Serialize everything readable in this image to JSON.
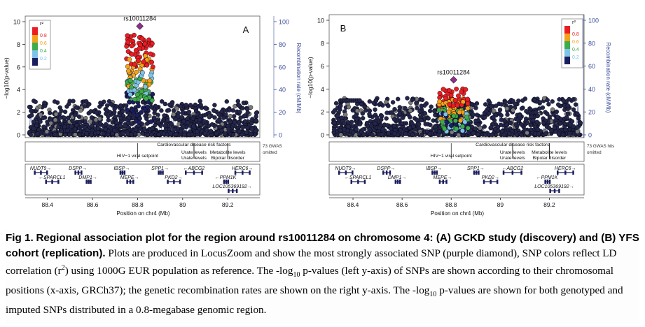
{
  "colors": {
    "r2_bins": [
      "#ea1d24",
      "#f6a11b",
      "#3dac4a",
      "#7fc4e8",
      "#1b1e5e"
    ],
    "index_snp": "#8a2f8a",
    "recomb_line": "#7a84b8",
    "recomb_axis": "#3c4d9a",
    "background_snp": "#23254a"
  },
  "chart_data": [
    {
      "panel_label": "A",
      "type": "scatter",
      "index_snp": {
        "name": "rs10011284",
        "x": 88.81,
        "y": 9.6
      },
      "x_ticks": [
        "88.4",
        "88.6",
        "88.8",
        "89",
        "89.2"
      ],
      "xlim": [
        88.32,
        89.33
      ],
      "xlabel": "Position on chr4 (Mb)",
      "ylabel_left": "−log10(p-value)",
      "ylim_left": [
        0,
        10
      ],
      "yticks_left": [
        "0",
        "2",
        "4",
        "6",
        "8",
        "10"
      ],
      "ylabel_right": "Recombination rate (cM/Mb)",
      "ylim_right": [
        0,
        100
      ],
      "yticks_right": [
        "0",
        "20",
        "40",
        "60",
        "80",
        "100"
      ],
      "legend": {
        "title": "r²",
        "labels": [
          "0.8",
          "0.6",
          "0.4",
          "0.2"
        ],
        "placement": "top-left"
      },
      "gwas_traits": [
        {
          "label": "HIV−1 viral setpoint",
          "x": 88.8
        },
        {
          "label": "Cardiovascular disease risk factors",
          "x": 89.05
        },
        {
          "label": "Urate levels",
          "x": 89.05
        },
        {
          "label": "Urate levels",
          "x": 89.05
        },
        {
          "label": "Metabolite levels",
          "x": 89.2
        },
        {
          "label": "Bipolar disorder",
          "x": 89.2
        }
      ],
      "gwas_note": [
        "73 GWAS",
        "omitted"
      ],
      "genes": [
        {
          "name": "NUDT9",
          "strand": "+",
          "start": 88.34,
          "end": 88.4,
          "row": 0
        },
        {
          "name": "SPARCL1",
          "strand": "-",
          "start": 88.39,
          "end": 88.45,
          "row": 1
        },
        {
          "name": "DSPP",
          "strand": "+",
          "start": 88.52,
          "end": 88.55,
          "row": 0
        },
        {
          "name": "DMP1",
          "strand": "+",
          "start": 88.57,
          "end": 88.59,
          "row": 1
        },
        {
          "name": "IBSP",
          "strand": "+",
          "start": 88.72,
          "end": 88.74,
          "row": 0
        },
        {
          "name": "MEPE",
          "strand": "+",
          "start": 88.75,
          "end": 88.78,
          "row": 1
        },
        {
          "name": "SPP1",
          "strand": "+",
          "start": 88.89,
          "end": 88.91,
          "row": 0
        },
        {
          "name": "PKD2",
          "strand": "+",
          "start": 88.93,
          "end": 88.99,
          "row": 1
        },
        {
          "name": "ABCG2",
          "strand": "-",
          "start": 89.01,
          "end": 89.09,
          "row": 0
        },
        {
          "name": "PPM1K",
          "strand": "-",
          "start": 89.18,
          "end": 89.2,
          "row": 1
        },
        {
          "name": "LOC105369192",
          "strand": "+",
          "start": 89.2,
          "end": 89.24,
          "row": 2
        },
        {
          "name": "HERC6",
          "strand": "+",
          "start": 89.23,
          "end": 89.3,
          "row": 0
        }
      ]
    },
    {
      "panel_label": "B",
      "type": "scatter",
      "index_snp": {
        "name": "rs10011284",
        "x": 88.81,
        "y": 4.8
      },
      "x_ticks": [
        "88.4",
        "88.6",
        "88.8",
        "89",
        "89.2"
      ],
      "xlim": [
        88.32,
        89.33
      ],
      "xlabel": "Position on chr4 (Mb)",
      "ylabel_left": "−log10(p-value)",
      "ylim_left": [
        0,
        10
      ],
      "yticks_left": [
        "0",
        "2",
        "4",
        "6",
        "8",
        "10"
      ],
      "ylabel_right": "Recombination rate (cM/Mb)",
      "ylim_right": [
        0,
        100
      ],
      "yticks_right": [
        "0",
        "20",
        "40",
        "60",
        "80",
        "100"
      ],
      "legend": {
        "title": "r²",
        "labels": [
          "0.8",
          "0.6",
          "0.4",
          "0.2"
        ],
        "placement": "top-right"
      },
      "gwas_traits": [
        {
          "label": "HIV−1 viral setpoint",
          "x": 88.8
        },
        {
          "label": "Cardiovascular disease risk factors",
          "x": 89.05
        },
        {
          "label": "Urate levels",
          "x": 89.05
        },
        {
          "label": "Urate levels",
          "x": 89.05
        },
        {
          "label": "Metabolite levels",
          "x": 89.2
        },
        {
          "label": "Bipolar disorder",
          "x": 89.2
        }
      ],
      "gwas_note": [
        "73 GWAS hits",
        "omitted"
      ],
      "genes": [
        {
          "name": "NUDT9",
          "strand": "+",
          "start": 88.34,
          "end": 88.4,
          "row": 0
        },
        {
          "name": "SPARCL1",
          "strand": "-",
          "start": 88.39,
          "end": 88.45,
          "row": 1
        },
        {
          "name": "DSPP",
          "strand": "+",
          "start": 88.52,
          "end": 88.55,
          "row": 0
        },
        {
          "name": "DMP1",
          "strand": "+",
          "start": 88.57,
          "end": 88.59,
          "row": 1
        },
        {
          "name": "IBSP",
          "strand": "+",
          "start": 88.72,
          "end": 88.74,
          "row": 0
        },
        {
          "name": "MEPE",
          "strand": "+",
          "start": 88.75,
          "end": 88.78,
          "row": 1
        },
        {
          "name": "SPP1",
          "strand": "+",
          "start": 88.89,
          "end": 88.91,
          "row": 0
        },
        {
          "name": "PKD2",
          "strand": "+",
          "start": 88.93,
          "end": 88.99,
          "row": 1
        },
        {
          "name": "ABCG2",
          "strand": "-",
          "start": 89.01,
          "end": 89.09,
          "row": 0
        },
        {
          "name": "PPM1K",
          "strand": "-",
          "start": 89.18,
          "end": 89.2,
          "row": 1
        },
        {
          "name": "LOC105369192",
          "strand": "+",
          "start": 89.2,
          "end": 89.24,
          "row": 2
        },
        {
          "name": "HERC6",
          "strand": "+",
          "start": 89.23,
          "end": 89.3,
          "row": 0
        }
      ]
    }
  ],
  "caption": {
    "label": "Fig 1.",
    "title": "Regional association plot for the region around rs10011284 on chromosome 4: (A) GCKD study (discovery) and (B) YFS cohort (replication).",
    "text_1": "Plots are produced in LocusZoom and show the most strongly associated SNP (purple diamond), SNP colors reflect LD correlation (r",
    "text_sup": "2",
    "text_2": ") using 1000G EUR population as reference. The -log",
    "text_sub": "10",
    "text_3": " p-values (left y-axis) of SNPs are shown according to their chromosomal positions (x-axis, GRCh37); the genetic recombination rates are shown on the right y-axis. The -log",
    "text_sub2": "10",
    "text_4": " p-values are shown for both genotyped and imputed SNPs distributed in a 0.8-megabase genomic region."
  }
}
